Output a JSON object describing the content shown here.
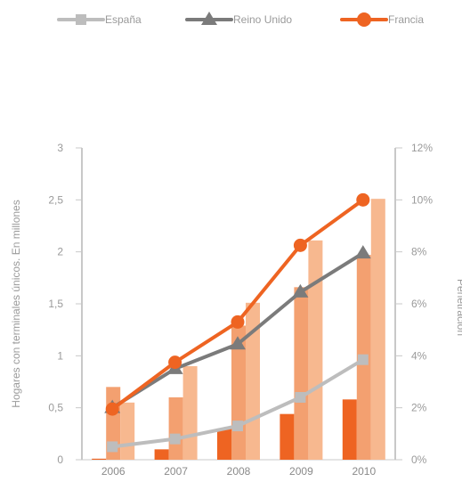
{
  "chart_data": {
    "type": "bar",
    "title": "",
    "xlabel": "",
    "ylabel": "Hogares con terminales únicos. En millones",
    "y2label": "Penetración",
    "categories": [
      "2006",
      "2007",
      "2008",
      "2009",
      "2010"
    ],
    "ylim": [
      0,
      3
    ],
    "y2lim": [
      0,
      12
    ],
    "yticks": [
      "0",
      "0,5",
      "1",
      "1,5",
      "2",
      "2,5",
      "3"
    ],
    "y2ticks": [
      "0%",
      "2%",
      "4%",
      "6%",
      "8%",
      "10%",
      "12%"
    ],
    "bar_series": [
      {
        "values": [
          0.01,
          0.1,
          0.3,
          0.44,
          0.58
        ],
        "color": "#ee6422"
      },
      {
        "values": [
          0.7,
          0.6,
          1.29,
          1.66,
          1.97
        ],
        "color": "#f3a070"
      },
      {
        "values": [
          0.55,
          0.9,
          1.51,
          2.11,
          2.51
        ],
        "color": "#f7b88f"
      }
    ],
    "line_series": [
      {
        "name": "España",
        "values": [
          0.5,
          0.8,
          1.3,
          2.4,
          3.85
        ],
        "axis": "y2",
        "marker": "square",
        "color": "#bdbdbd"
      },
      {
        "name": "Reino Unido",
        "values": [
          2.0,
          3.5,
          4.45,
          6.45,
          7.95
        ],
        "axis": "y2",
        "marker": "triangle",
        "color": "#7b7b7b"
      },
      {
        "name": "Francia",
        "values": [
          1.95,
          3.75,
          5.3,
          8.25,
          10.0
        ],
        "axis": "y2",
        "marker": "circle",
        "color": "#ee6422"
      }
    ],
    "legend_position": "top",
    "grid": false
  }
}
